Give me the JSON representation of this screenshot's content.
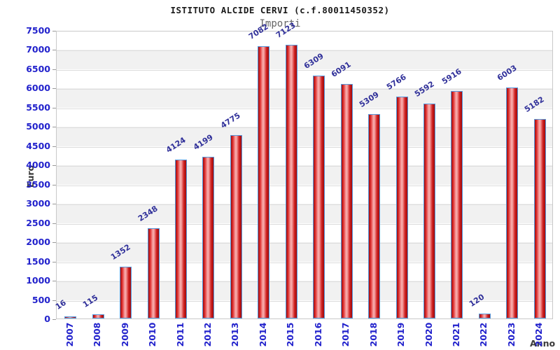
{
  "chart_data": {
    "type": "bar",
    "title": "ISTITUTO ALCIDE CERVI (c.f.80011450352)",
    "subtitle": "Importi",
    "xlabel": "Anno",
    "ylabel": "Euro",
    "categories": [
      "2007",
      "2008",
      "2009",
      "2010",
      "2011",
      "2012",
      "2013",
      "2014",
      "2015",
      "2016",
      "2017",
      "2018",
      "2019",
      "2020",
      "2021",
      "2022",
      "2023",
      "2024"
    ],
    "values": [
      16,
      115,
      1352,
      2348,
      4124,
      4199,
      4775,
      7082,
      7123,
      6309,
      6091,
      5309,
      5766,
      5592,
      5916,
      120,
      6003,
      5182
    ],
    "ylim": [
      0,
      7500
    ],
    "ytick_step": 500,
    "grid": "horizontal-bands-alternating",
    "legend": "none",
    "value_labels": "above-bars-rotated",
    "colors": {
      "title": "#1a1a1a",
      "subtitle": "#666666",
      "axis_text": "#2222cc",
      "value_label": "#31319a",
      "axis_title": "#3a3a3a",
      "band_gray": "#f1f1f1",
      "gridline": "#dcdcdc",
      "bar_dark": "#9e0b0b",
      "bar_light": "#f7a6a6",
      "bar_border": "#5599dd"
    }
  }
}
